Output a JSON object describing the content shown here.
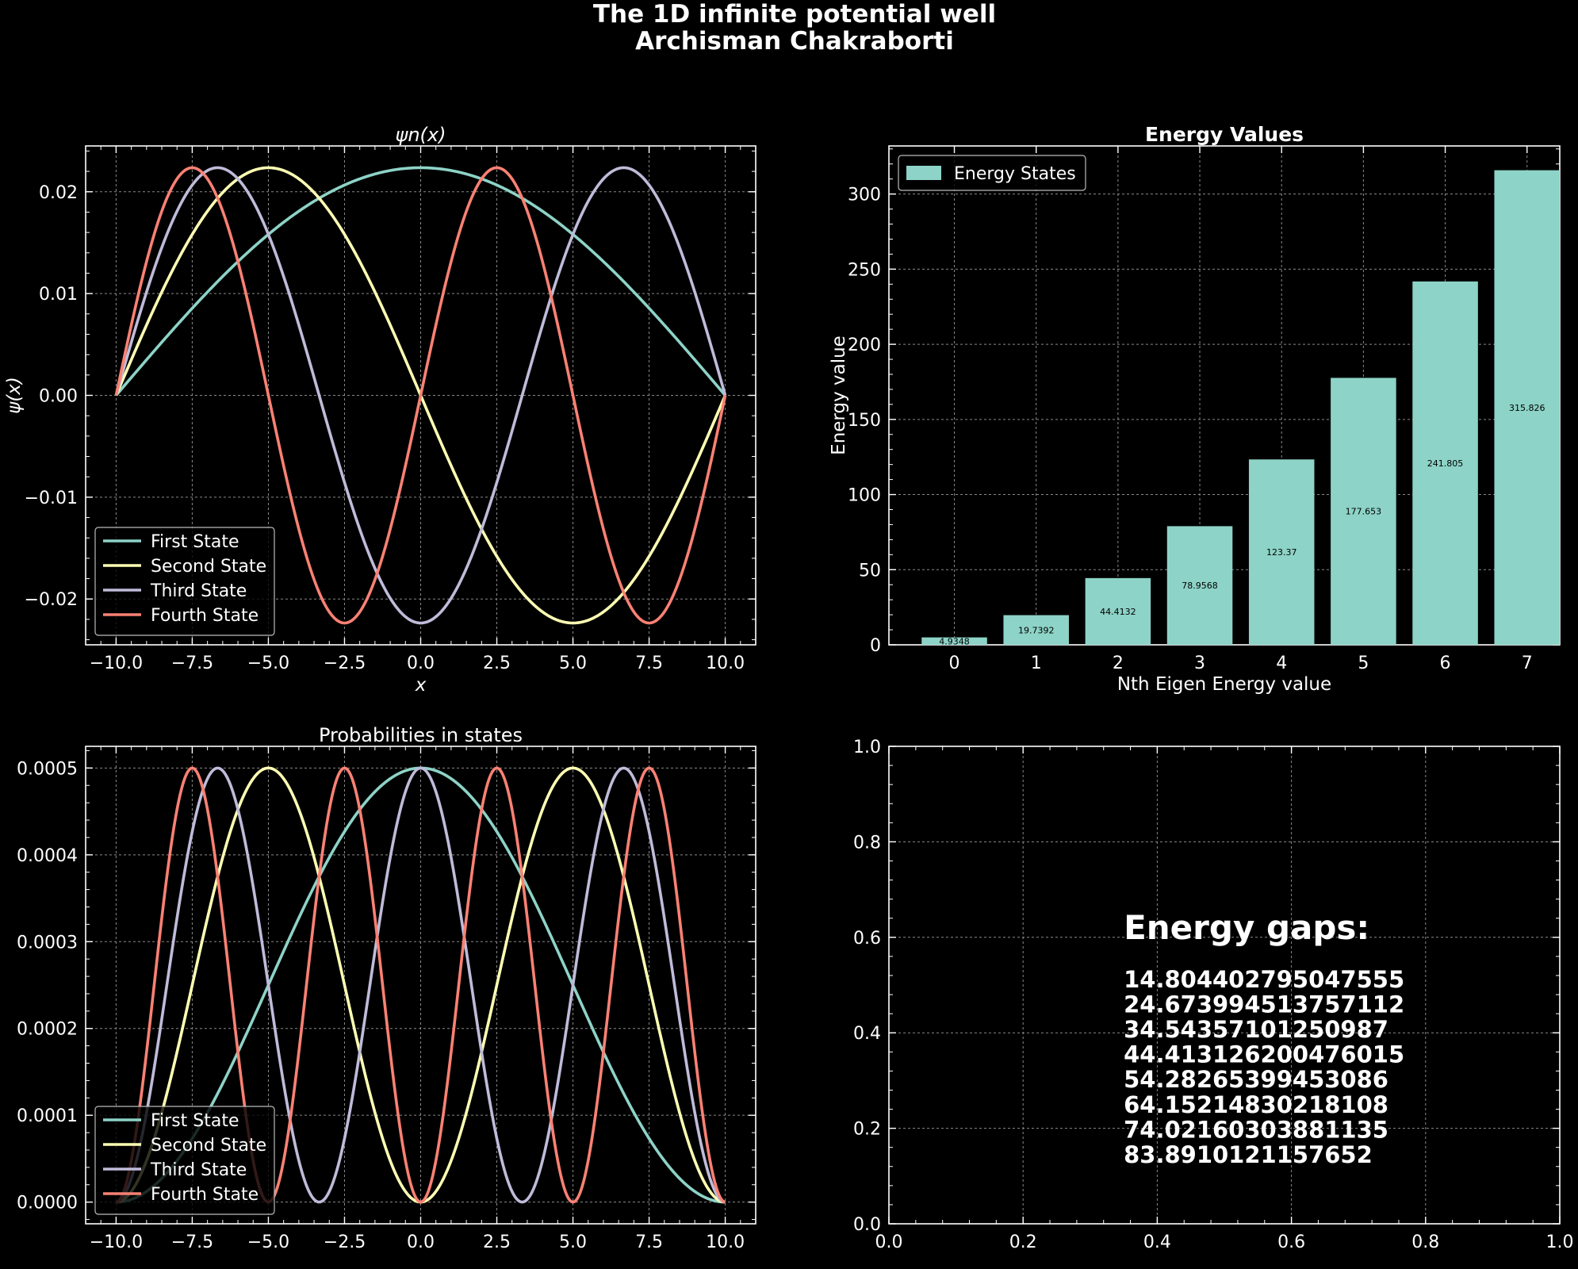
{
  "figure": {
    "title_line1": "The 1D infinite potential well",
    "title_line2": "Archisman Chakraborti",
    "background": "#000000"
  },
  "chart_data": [
    {
      "type": "line",
      "title": "ψn(x)",
      "xlabel": "x",
      "ylabel": "ψ(x)",
      "xlim": [
        -11,
        11
      ],
      "ylim": [
        -0.0245,
        0.0245
      ],
      "xticks": [
        "−10.0",
        "−7.5",
        "−5.0",
        "−2.5",
        "0.0",
        "2.5",
        "5.0",
        "7.5",
        "10.0"
      ],
      "yticks": [
        "−0.02",
        "−0.01",
        "0.00",
        "0.01",
        "0.02"
      ],
      "legend_position": "lower-left",
      "grid": true,
      "amplitude": 0.02236,
      "well_half_width": 10,
      "series": [
        {
          "name": "First State",
          "n": 1,
          "color": "#8dd3c7"
        },
        {
          "name": "Second State",
          "n": 2,
          "color": "#feffb3"
        },
        {
          "name": "Third State",
          "n": 3,
          "color": "#bfbbd9"
        },
        {
          "name": "Fourth State",
          "n": 4,
          "color": "#fa8174"
        }
      ]
    },
    {
      "type": "bar",
      "title": "Energy Values",
      "xlabel": "Nth Eigen Energy value",
      "ylabel": "Energy value",
      "ylim": [
        0,
        332
      ],
      "categories": [
        "0",
        "1",
        "2",
        "3",
        "4",
        "5",
        "6",
        "7"
      ],
      "values": [
        4.9348,
        19.7392,
        44.4132,
        78.9568,
        123.37,
        177.653,
        241.805,
        315.826
      ],
      "value_labels": [
        "4.9348",
        "19.7392",
        "44.4132",
        "78.9568",
        "123.37",
        "177.653",
        "241.805",
        "315.826"
      ],
      "yticks": [
        "0",
        "50",
        "100",
        "150",
        "200",
        "250",
        "300"
      ],
      "legend": "Energy States",
      "legend_position": "top-left",
      "color": "#8dd3c7",
      "grid": true
    },
    {
      "type": "line",
      "title": "Probabilities in states",
      "xlabel": "",
      "ylabel": "",
      "xlim": [
        -11,
        11
      ],
      "ylim": [
        -2.5e-05,
        0.000525
      ],
      "xticks": [
        "−10.0",
        "−7.5",
        "−5.0",
        "−2.5",
        "0.0",
        "2.5",
        "5.0",
        "7.5",
        "10.0"
      ],
      "yticks": [
        "0.0000",
        "0.0001",
        "0.0002",
        "0.0003",
        "0.0004",
        "0.0005"
      ],
      "legend_position": "lower-left",
      "grid": true,
      "amplitude": 0.0005,
      "well_half_width": 10,
      "series": [
        {
          "name": "First State",
          "n": 1,
          "color": "#8dd3c7"
        },
        {
          "name": "Second State",
          "n": 2,
          "color": "#feffb3"
        },
        {
          "name": "Third State",
          "n": 3,
          "color": "#bfbbd9"
        },
        {
          "name": "Fourth State",
          "n": 4,
          "color": "#fa8174"
        }
      ]
    },
    {
      "type": "table",
      "title": "",
      "xlim": [
        0,
        1
      ],
      "ylim": [
        0,
        1
      ],
      "xticks": [
        "0.0",
        "0.2",
        "0.4",
        "0.6",
        "0.8",
        "1.0"
      ],
      "yticks": [
        "0.0",
        "0.2",
        "0.4",
        "0.6",
        "0.8",
        "1.0"
      ],
      "grid": true,
      "heading": "Energy gaps:",
      "gaps": [
        "14.804402795047555",
        "24.673994513757112",
        "34.54357101250987",
        "44.413126200476015",
        "54.28265399453086",
        "64.15214830218108",
        "74.02160303881135",
        "83.8910121157652"
      ]
    }
  ]
}
